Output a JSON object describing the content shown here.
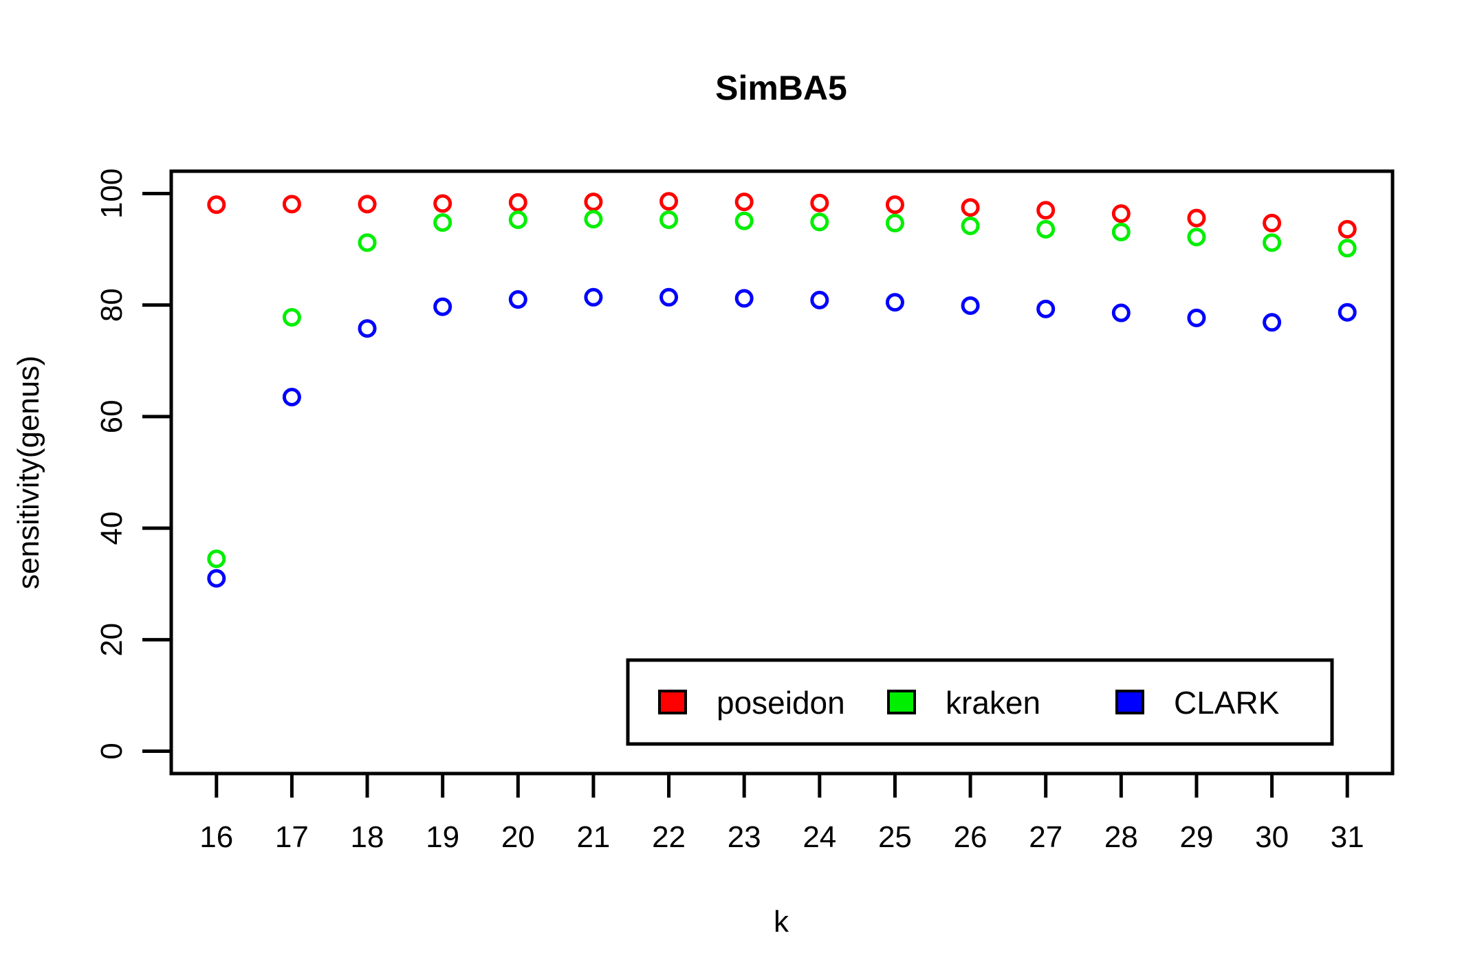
{
  "chart_data": {
    "type": "scatter",
    "title": "SimBA5",
    "xlabel": "k",
    "ylabel": "sensitivity(genus)",
    "x": [
      16,
      17,
      18,
      19,
      20,
      21,
      22,
      23,
      24,
      25,
      26,
      27,
      28,
      29,
      30,
      31
    ],
    "xlim": [
      15.4,
      31.6
    ],
    "ylim": [
      -4,
      104
    ],
    "yticks": [
      0,
      20,
      40,
      60,
      80,
      100
    ],
    "grid": false,
    "legend_position": "bottom-right",
    "series": [
      {
        "name": "poseidon",
        "color": "#ff0000",
        "values": [
          98.0,
          98.1,
          98.1,
          98.2,
          98.4,
          98.5,
          98.6,
          98.5,
          98.3,
          98.0,
          97.5,
          97.0,
          96.4,
          95.6,
          94.7,
          93.6
        ]
      },
      {
        "name": "kraken",
        "color": "#00ee00",
        "values": [
          34.5,
          77.8,
          91.2,
          94.8,
          95.3,
          95.4,
          95.3,
          95.1,
          94.9,
          94.7,
          94.2,
          93.6,
          93.1,
          92.2,
          91.2,
          90.2
        ]
      },
      {
        "name": "CLARK",
        "color": "#0000ff",
        "values": [
          31.0,
          63.5,
          75.8,
          79.7,
          81.0,
          81.4,
          81.4,
          81.2,
          80.9,
          80.5,
          79.9,
          79.3,
          78.6,
          77.7,
          76.9,
          78.7
        ]
      }
    ]
  }
}
